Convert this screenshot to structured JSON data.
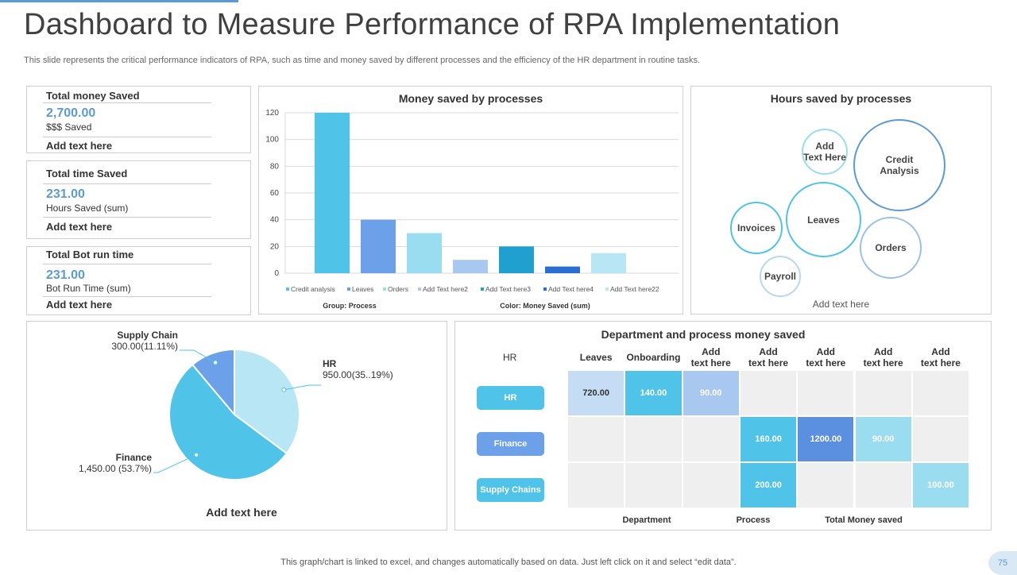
{
  "header": {
    "title": "Dashboard to Measure Performance of RPA Implementation",
    "subtitle": "This slide represents the critical performance indicators of RPA, such as time and money saved by different processes and the efficiency of the HR department in routine tasks."
  },
  "kpis": [
    {
      "title": "Total money  Saved",
      "value": "2,700.00",
      "label": "$$$  Saved",
      "add": "Add text here"
    },
    {
      "title": "Total time Saved",
      "value": "231.00",
      "label": "Hours  Saved  (sum)",
      "add": "Add text here"
    },
    {
      "title": "Total Bot run time",
      "value": "231.00",
      "label": "Bot Run Time (sum)",
      "add": "Add text here"
    }
  ],
  "bar_chart_meta": {
    "group_label": "Group: Process",
    "color_label": "Color: Money Saved (sum)"
  },
  "chart_data": [
    {
      "type": "bar",
      "title": "Money saved by processes",
      "categories": [
        "Credit analysis",
        "Leaves",
        "Orders",
        "Add Text here2",
        "Add Text here3",
        "Add Text here4",
        "Add Text here22"
      ],
      "values": [
        120,
        40,
        30,
        10,
        20,
        5,
        15
      ],
      "colors": [
        "#4fc3e8",
        "#6ca0e8",
        "#9adcf0",
        "#a8c8f0",
        "#1fa0cf",
        "#2a6fcf",
        "#b8e6f5"
      ],
      "ylim": [
        0,
        120
      ],
      "yticks": [
        0,
        20,
        40,
        60,
        80,
        100,
        120
      ],
      "xlabel": "Group: Process",
      "ylabel": ""
    },
    {
      "type": "pie",
      "title": "",
      "slices": [
        {
          "name": "HR",
          "value": 950.0,
          "label": "950.00(35..19%)",
          "color": "#b8e6f5"
        },
        {
          "name": "Finance",
          "value": 1450.0,
          "label": "1,450.00 (53.7%)",
          "color": "#4fc3e8"
        },
        {
          "name": "Supply Chain",
          "value": 300.0,
          "label": "300.00(11.11%)",
          "color": "#6ca0e8"
        }
      ]
    }
  ],
  "bubbles": {
    "title": "Hours saved by processes",
    "items": [
      {
        "label": "Add\nText Here",
        "color": "#9adcf0"
      },
      {
        "label": "Credit\nAnalysis",
        "color": "#5b9bd5"
      },
      {
        "label": "Leaves",
        "color": "#4fc3e8"
      },
      {
        "label": "Invoices",
        "color": "#4fc3e8"
      },
      {
        "label": "Orders",
        "color": "#9ac0e8"
      },
      {
        "label": "Payroll",
        "color": "#b8d8f0"
      }
    ],
    "add_text": "Add text here"
  },
  "pie_caption": "Add  text here",
  "matrix": {
    "title": "Department and process money saved",
    "corner": "HR",
    "columns": [
      "Leaves",
      "Onboarding",
      "Add text here",
      "Add text here",
      "Add text here",
      "Add text here",
      "Add text here"
    ],
    "rows": [
      {
        "label": "HR",
        "color": "#4fc3e8",
        "cells": [
          "720.00",
          "140.00",
          "90.00",
          "",
          "",
          "",
          ""
        ],
        "cell_colors": [
          "#c5dcf5",
          "#4fc3e8",
          "#a8c8f0",
          "",
          "",
          "",
          ""
        ]
      },
      {
        "label": "Finance",
        "color": "#6ca0e8",
        "cells": [
          "",
          "",
          "",
          "160.00",
          "1200.00",
          "90.00",
          ""
        ],
        "cell_colors": [
          "",
          "",
          "",
          "#4fc3e8",
          "#5b8fe0",
          "#9adcf0",
          ""
        ]
      },
      {
        "label": "Supply Chains",
        "color": "#4fc3e8",
        "cells": [
          "",
          "",
          "",
          "200.00",
          "",
          "",
          "100.00"
        ],
        "cell_colors": [
          "",
          "",
          "",
          "#4fc3e8",
          "",
          "",
          "#9adcf0"
        ]
      }
    ],
    "footer": [
      "Department",
      "Process",
      "Total Money saved"
    ]
  },
  "footer": {
    "note": "This graph/chart is linked to excel,  and changes automatically based on data. Just left click on it and select “edit data”.",
    "page": "75"
  }
}
